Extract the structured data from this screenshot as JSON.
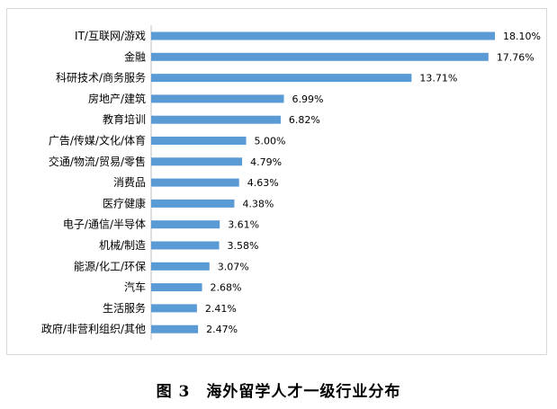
{
  "chart_data": {
    "type": "bar",
    "orientation": "horizontal",
    "categories": [
      "IT/互联网/游戏",
      "金融",
      "科研技术/商务服务",
      "房地产/建筑",
      "教育培训",
      "广告/传媒/文化/体育",
      "交通/物流/贸易/零售",
      "消费品",
      "医疗健康",
      "电子/通信/半导体",
      "机械/制造",
      "能源/化工/环保",
      "汽车",
      "生活服务",
      "政府/非营利组织/其他"
    ],
    "values": [
      18.1,
      17.76,
      13.71,
      6.99,
      6.82,
      5.0,
      4.79,
      4.63,
      4.38,
      3.61,
      3.58,
      3.07,
      2.68,
      2.41,
      2.47
    ],
    "value_labels": [
      "18.10%",
      "17.76%",
      "13.71%",
      "6.99%",
      "6.82%",
      "5.00%",
      "4.79%",
      "4.63%",
      "4.38%",
      "3.61%",
      "3.58%",
      "3.07%",
      "2.68%",
      "2.41%",
      "2.47%"
    ],
    "xlim": [
      0,
      18.1
    ],
    "grid": false,
    "legend": "none",
    "bar_color": "#5b9bd5"
  },
  "caption": "图 3　海外留学人才一级行业分布"
}
